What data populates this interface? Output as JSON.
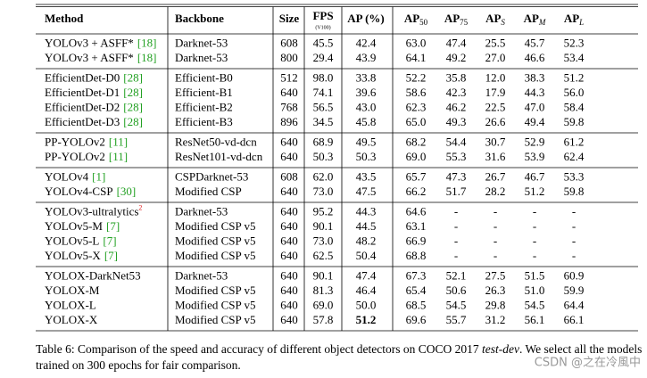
{
  "table": {
    "header": [
      {
        "text": "Method"
      },
      {
        "text": "Backbone"
      },
      {
        "text": "Size"
      },
      {
        "text": "FPS",
        "sub": "(V100)"
      },
      {
        "text": "AP (%)"
      },
      {
        "text": "AP",
        "sub": "50"
      },
      {
        "text": "AP",
        "sub": "75"
      },
      {
        "text": "AP",
        "sub": "S"
      },
      {
        "text": "AP",
        "sub": "M"
      },
      {
        "text": "AP",
        "sub": "L"
      }
    ],
    "groups": [
      {
        "rows": [
          {
            "method": "YOLOv3 + ASFF*",
            "ref": "[18]",
            "cells": [
              "Darknet-53",
              "608",
              "45.5",
              "42.4",
              "63.0",
              "47.4",
              "25.5",
              "45.7",
              "52.3"
            ]
          },
          {
            "method": "YOLOv3 + ASFF*",
            "ref": "[18]",
            "cells": [
              "Darknet-53",
              "800",
              "29.4",
              "43.9",
              "64.1",
              "49.2",
              "27.0",
              "46.6",
              "53.4"
            ]
          }
        ]
      },
      {
        "rows": [
          {
            "method": "EfficientDet-D0",
            "ref": "[28]",
            "cells": [
              "Efficient-B0",
              "512",
              "98.0",
              "33.8",
              "52.2",
              "35.8",
              "12.0",
              "38.3",
              "51.2"
            ]
          },
          {
            "method": "EfficientDet-D1",
            "ref": "[28]",
            "cells": [
              "Efficient-B1",
              "640",
              "74.1",
              "39.6",
              "58.6",
              "42.3",
              "17.9",
              "44.3",
              "56.0"
            ]
          },
          {
            "method": "EfficientDet-D2",
            "ref": "[28]",
            "cells": [
              "Efficient-B2",
              "768",
              "56.5",
              "43.0",
              "62.3",
              "46.2",
              "22.5",
              "47.0",
              "58.4"
            ]
          },
          {
            "method": "EfficientDet-D3",
            "ref": "[28]",
            "cells": [
              "Efficient-B3",
              "896",
              "34.5",
              "45.8",
              "65.0",
              "49.3",
              "26.6",
              "49.4",
              "59.8"
            ]
          }
        ]
      },
      {
        "rows": [
          {
            "method": "PP-YOLOv2",
            "ref": "[11]",
            "cells": [
              "ResNet50-vd-dcn",
              "640",
              "68.9",
              "49.5",
              "68.2",
              "54.4",
              "30.7",
              "52.9",
              "61.2"
            ]
          },
          {
            "method": "PP-YOLOv2",
            "ref": "[11]",
            "cells": [
              "ResNet101-vd-dcn",
              "640",
              "50.3",
              "50.3",
              "69.0",
              "55.3",
              "31.6",
              "53.9",
              "62.4"
            ]
          }
        ]
      },
      {
        "rows": [
          {
            "method": "YOLOv4",
            "ref": "[1]",
            "cells": [
              "CSPDarknet-53",
              "608",
              "62.0",
              "43.5",
              "65.7",
              "47.3",
              "26.7",
              "46.7",
              "53.3"
            ]
          },
          {
            "method": "YOLOv4-CSP",
            "ref": "[30]",
            "cells": [
              "Modified CSP",
              "640",
              "73.0",
              "47.5",
              "66.2",
              "51.7",
              "28.2",
              "51.2",
              "59.8"
            ]
          }
        ]
      },
      {
        "rows": [
          {
            "method": "YOLOv3-ultralytics",
            "note": "2",
            "cells": [
              "Darknet-53",
              "640",
              "95.2",
              "44.3",
              "64.6",
              "-",
              "-",
              "-",
              "-"
            ]
          },
          {
            "method": "YOLOv5-M",
            "ref": "[7]",
            "cells": [
              "Modified CSP v5",
              "640",
              "90.1",
              "44.5",
              "63.1",
              "-",
              "-",
              "-",
              "-"
            ]
          },
          {
            "method": "YOLOv5-L",
            "ref": "[7]",
            "cells": [
              "Modified CSP v5",
              "640",
              "73.0",
              "48.2",
              "66.9",
              "-",
              "-",
              "-",
              "-"
            ]
          },
          {
            "method": "YOLOv5-X",
            "ref": "[7]",
            "cells": [
              "Modified CSP v5",
              "640",
              "62.5",
              "50.4",
              "68.8",
              "-",
              "-",
              "-",
              "-"
            ]
          }
        ]
      },
      {
        "rows": [
          {
            "method": "YOLOX-DarkNet53",
            "cells": [
              "Darknet-53",
              "640",
              "90.1",
              "47.4",
              "67.3",
              "52.1",
              "27.5",
              "51.5",
              "60.9"
            ]
          },
          {
            "method": "YOLOX-M",
            "cells": [
              "Modified CSP v5",
              "640",
              "81.3",
              "46.4",
              "65.4",
              "50.6",
              "26.3",
              "51.0",
              "59.9"
            ]
          },
          {
            "method": "YOLOX-L",
            "cells": [
              "Modified CSP v5",
              "640",
              "69.0",
              "50.0",
              "68.5",
              "54.5",
              "29.8",
              "54.5",
              "64.4"
            ]
          },
          {
            "method": "YOLOX-X",
            "cells": [
              "Modified CSP v5",
              "640",
              "57.8",
              "51.2",
              "69.6",
              "55.7",
              "31.2",
              "56.1",
              "66.1"
            ]
          }
        ]
      }
    ]
  },
  "caption": {
    "before": "Table 6: Comparison of the speed and accuracy of different object detectors on COCO 2017 ",
    "italic": "test-dev",
    "after": ". We select all the models trained on 300 epochs for fair comparison."
  },
  "watermark": "CSDN @之在冷風中"
}
